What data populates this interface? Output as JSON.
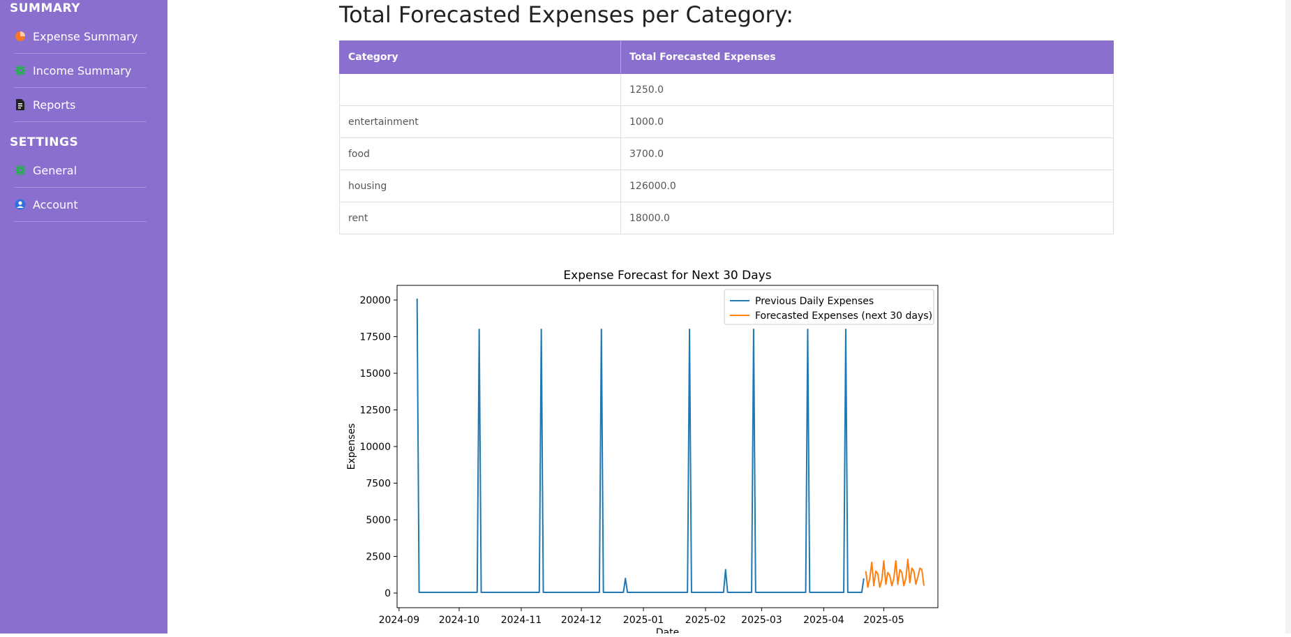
{
  "sidebar": {
    "sections": [
      {
        "title": "SUMMARY",
        "items": [
          {
            "label": "Expense Summary",
            "icon": "pie-chart-icon",
            "color": "#f7762a"
          },
          {
            "label": "Income Summary",
            "icon": "gear-icon",
            "color": "#22b14c"
          },
          {
            "label": "Reports",
            "icon": "document-icon",
            "color": "#222222"
          }
        ]
      },
      {
        "title": "SETTINGS",
        "items": [
          {
            "label": "General",
            "icon": "gear-icon",
            "color": "#22b14c"
          },
          {
            "label": "Account",
            "icon": "user-circle-icon",
            "color": "#2f6fe0"
          }
        ]
      }
    ]
  },
  "main": {
    "title": "Total Forecasted Expenses per Category:",
    "table": {
      "headers": [
        "Category",
        "Total Forecasted Expenses"
      ],
      "rows": [
        [
          "",
          "1250.0"
        ],
        [
          "entertainment",
          "1000.0"
        ],
        [
          "food",
          "3700.0"
        ],
        [
          "housing",
          "126000.0"
        ],
        [
          "rent",
          "18000.0"
        ]
      ]
    }
  },
  "chart_data": {
    "type": "line",
    "title": "Expense Forecast for Next 30 Days",
    "xlabel": "Date",
    "ylabel": "Expenses",
    "ylim": [
      -1000,
      21000
    ],
    "xlim": [
      "2024-08-31",
      "2025-05-28"
    ],
    "yticks": [
      0,
      2500,
      5000,
      7500,
      10000,
      12500,
      15000,
      17500,
      20000
    ],
    "xticks": [
      "2024-09",
      "2024-10",
      "2024-11",
      "2024-12",
      "2025-01",
      "2025-02",
      "2025-03",
      "2025-04",
      "2025-05"
    ],
    "legend_position": "top-right",
    "series": [
      {
        "name": "Previous Daily Expenses",
        "color": "#1f77b4",
        "points": [
          [
            "2024-09-10",
            20100
          ],
          [
            "2024-09-11",
            50
          ],
          [
            "2024-10-10",
            50
          ],
          [
            "2024-10-11",
            18000
          ],
          [
            "2024-10-12",
            50
          ],
          [
            "2024-11-10",
            50
          ],
          [
            "2024-11-11",
            18000
          ],
          [
            "2024-11-12",
            50
          ],
          [
            "2024-12-10",
            50
          ],
          [
            "2024-12-11",
            18000
          ],
          [
            "2024-12-12",
            50
          ],
          [
            "2024-12-22",
            50
          ],
          [
            "2024-12-23",
            1000
          ],
          [
            "2024-12-24",
            50
          ],
          [
            "2025-01-23",
            50
          ],
          [
            "2025-01-24",
            18000
          ],
          [
            "2025-01-25",
            50
          ],
          [
            "2025-02-10",
            50
          ],
          [
            "2025-02-11",
            1600
          ],
          [
            "2025-02-12",
            50
          ],
          [
            "2025-02-24",
            50
          ],
          [
            "2025-02-25",
            18000
          ],
          [
            "2025-02-26",
            50
          ],
          [
            "2025-03-23",
            50
          ],
          [
            "2025-03-24",
            18000
          ],
          [
            "2025-03-25",
            50
          ],
          [
            "2025-04-11",
            50
          ],
          [
            "2025-04-12",
            18000
          ],
          [
            "2025-04-13",
            50
          ],
          [
            "2025-04-20",
            50
          ],
          [
            "2025-04-21",
            1000
          ]
        ]
      },
      {
        "name": "Forecasted Expenses (next 30 days)",
        "color": "#ff7f0e",
        "points": [
          [
            "2025-04-22",
            1500
          ],
          [
            "2025-04-23",
            400
          ],
          [
            "2025-04-24",
            1000
          ],
          [
            "2025-04-25",
            2100
          ],
          [
            "2025-04-26",
            500
          ],
          [
            "2025-04-27",
            1500
          ],
          [
            "2025-04-28",
            1300
          ],
          [
            "2025-04-29",
            400
          ],
          [
            "2025-04-30",
            900
          ],
          [
            "2025-05-01",
            2200
          ],
          [
            "2025-05-02",
            600
          ],
          [
            "2025-05-03",
            1400
          ],
          [
            "2025-05-04",
            1200
          ],
          [
            "2025-05-05",
            500
          ],
          [
            "2025-05-06",
            1000
          ],
          [
            "2025-05-07",
            2200
          ],
          [
            "2025-05-08",
            600
          ],
          [
            "2025-05-09",
            1600
          ],
          [
            "2025-05-10",
            1400
          ],
          [
            "2025-05-11",
            500
          ],
          [
            "2025-05-12",
            1000
          ],
          [
            "2025-05-13",
            2300
          ],
          [
            "2025-05-14",
            700
          ],
          [
            "2025-05-15",
            1700
          ],
          [
            "2025-05-16",
            1500
          ],
          [
            "2025-05-17",
            600
          ],
          [
            "2025-05-18",
            1100
          ],
          [
            "2025-05-19",
            1700
          ],
          [
            "2025-05-20",
            1600
          ],
          [
            "2025-05-21",
            500
          ]
        ]
      }
    ]
  }
}
